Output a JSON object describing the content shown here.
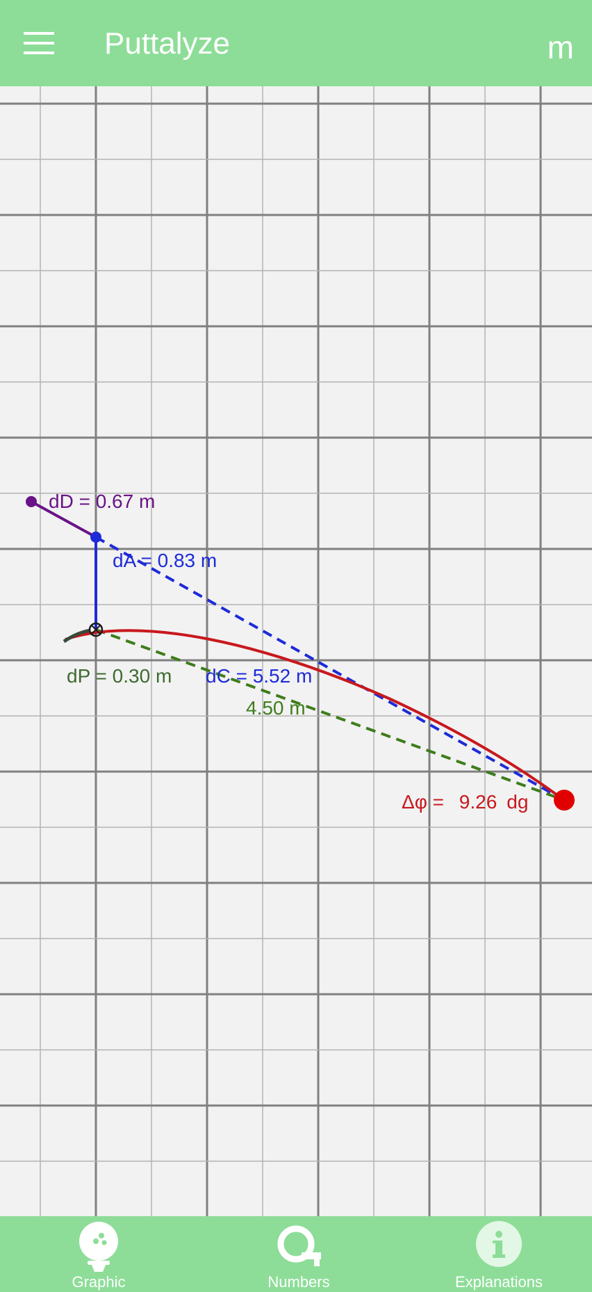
{
  "app": {
    "title": "Puttalyze",
    "unit": "m"
  },
  "icons": {
    "menu": "hamburger-menu-icon",
    "graphic": "golf-ball-on-tee-icon",
    "numbers": "tape-measure-icon",
    "explanations": "info-icon"
  },
  "colors": {
    "primary": "#8ddd98",
    "ball_path": "#c8181d",
    "aim_line": "#1d2bd9",
    "direct_line": "#3e7d1c",
    "deviation": "#6a1287",
    "putt_marker": "#3a4a3a",
    "grid_major": "#808080",
    "grid_minor": "#b3b3b3"
  },
  "graph": {
    "dD": {
      "label": "dD = ",
      "value": "0.67",
      "unit": "m"
    },
    "dA": {
      "label": "dA = ",
      "value": "0.83",
      "unit": "m"
    },
    "dP": {
      "label": "dP = ",
      "value": "0.30",
      "unit": "m"
    },
    "dC": {
      "label": "dC = ",
      "value": "5.52",
      "unit": "m"
    },
    "distance": {
      "value": "4.50",
      "unit": "m"
    },
    "angle": {
      "label": "Δφ = ",
      "value": "9.26",
      "unit": "dg"
    }
  },
  "bottom_nav": {
    "items": [
      {
        "label": "Graphic",
        "active": true
      },
      {
        "label": "Numbers",
        "active": false
      },
      {
        "label": "Explanations",
        "active": false
      }
    ]
  }
}
